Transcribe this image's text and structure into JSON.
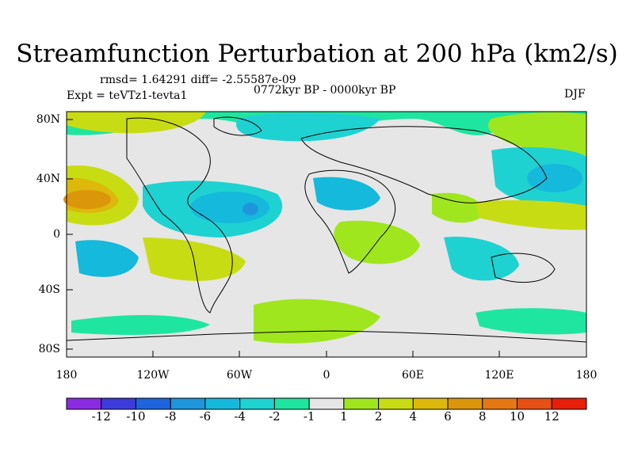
{
  "title": "Streamfunction Perturbation at 200 hPa (km2/s)",
  "stats": "rmsd= 1.64291  diff= -2.55587e-09",
  "period": "0772kyr BP - 0000kyr BP",
  "experiment": "Expt = teVTz1-tevta1",
  "season": "DJF",
  "lat_labels": [
    "80N",
    "40N",
    "0",
    "40S",
    "80S"
  ],
  "lon_labels": [
    "180",
    "120W",
    "60W",
    "0",
    "60E",
    "120E",
    "180"
  ],
  "colorbar": {
    "labels": [
      "-12",
      "-10",
      "-8",
      "-6",
      "-4",
      "-2",
      "-1",
      "1",
      "2",
      "4",
      "6",
      "8",
      "10",
      "12"
    ],
    "colors": [
      "#8a2be2",
      "#3c3cdc",
      "#1e64dc",
      "#1e96dc",
      "#14b9dc",
      "#1ed2d2",
      "#1ee6a0",
      "#e6e6e6",
      "#a0e61e",
      "#c8dc14",
      "#dcb90a",
      "#dc960a",
      "#e67814",
      "#e65014",
      "#e61e0a"
    ]
  }
}
